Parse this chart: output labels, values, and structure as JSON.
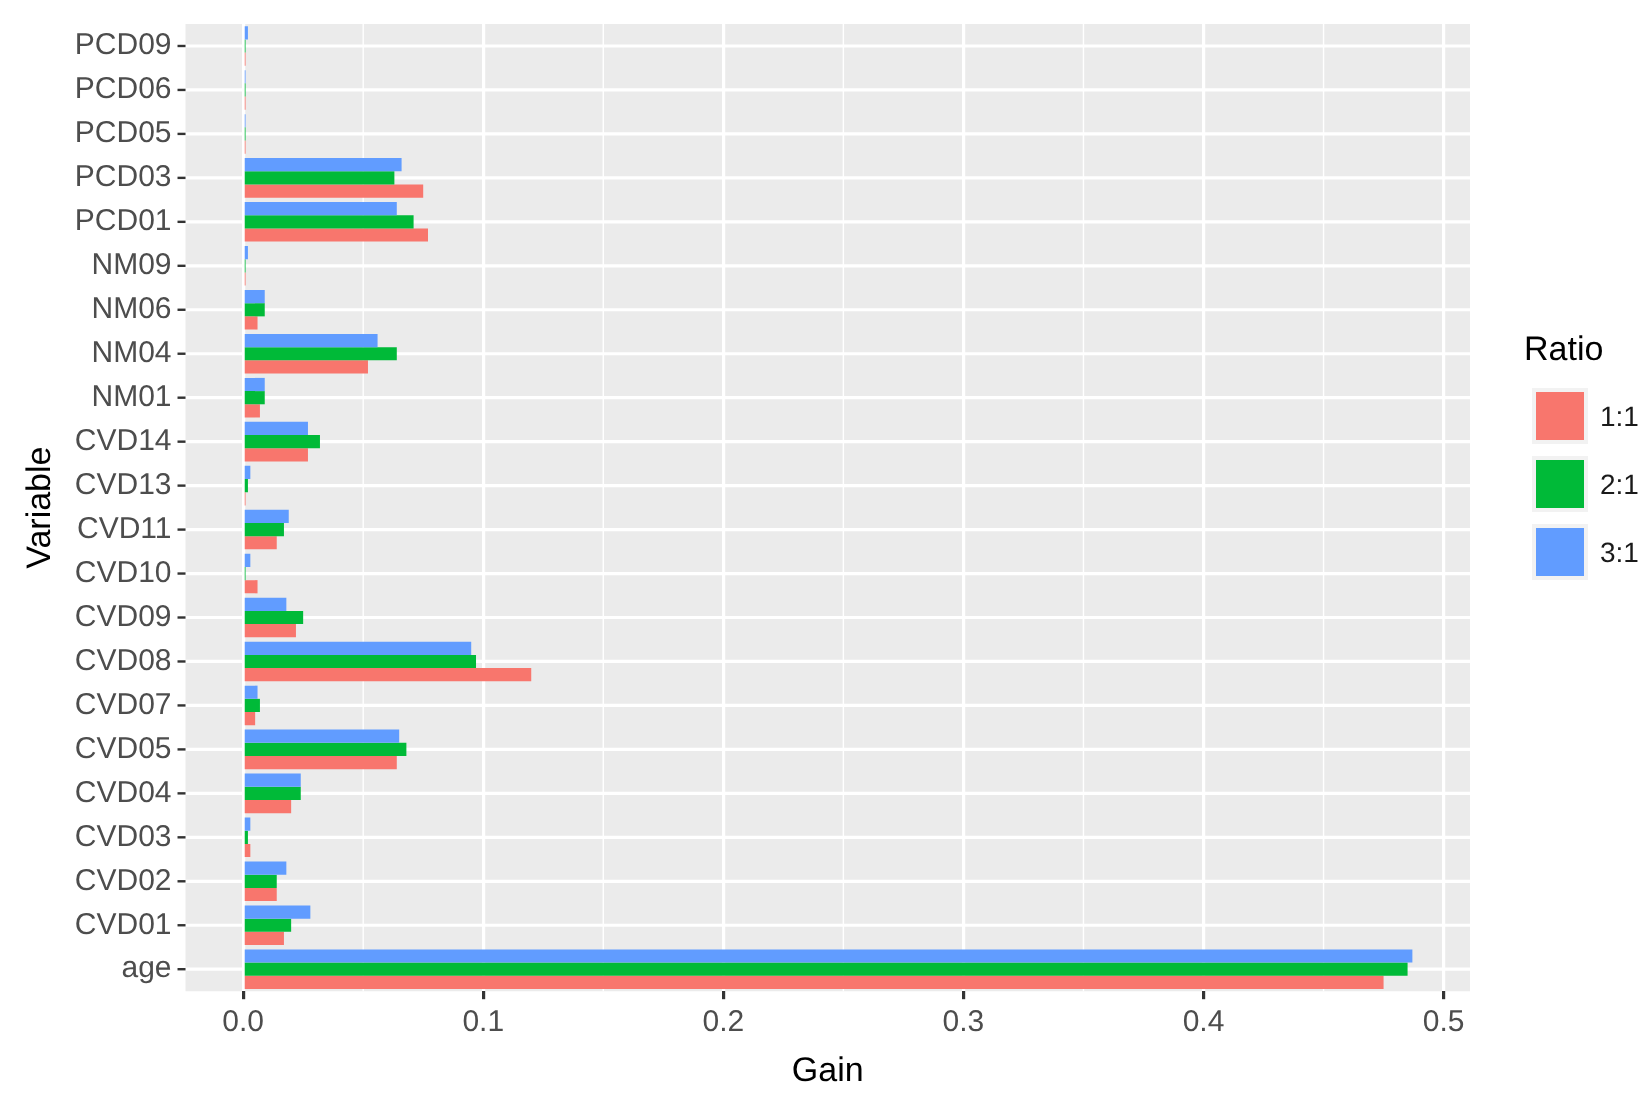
{
  "chart_data": {
    "type": "bar",
    "orientation": "horizontal",
    "xlabel": "Gain",
    "ylabel": "Variable",
    "legend_title": "Ratio",
    "legend": "right",
    "grid": true,
    "categories": [
      "PCD09",
      "PCD06",
      "PCD05",
      "PCD03",
      "PCD01",
      "NM09",
      "NM06",
      "NM04",
      "NM01",
      "CVD14",
      "CVD13",
      "CVD11",
      "CVD10",
      "CVD09",
      "CVD08",
      "CVD07",
      "CVD05",
      "CVD04",
      "CVD03",
      "CVD02",
      "CVD01",
      "age"
    ],
    "xlim": [
      -0.024,
      0.511
    ],
    "xticks": [
      {
        "value": 0,
        "label": "0.0"
      },
      0.1,
      0.2,
      0.3,
      0.4,
      0.5
    ],
    "series": [
      {
        "name": "1:1",
        "color": "#f8766d",
        "values": [
          0.001,
          0.001,
          0.001,
          0.075,
          0.077,
          0.001,
          0.006,
          0.052,
          0.007,
          0.027,
          0.001,
          0.014,
          0.006,
          0.022,
          0.12,
          0.005,
          0.064,
          0.02,
          0.003,
          0.014,
          0.017,
          0.475
        ]
      },
      {
        "name": "2:1",
        "color": "#00ba38",
        "values": [
          0.001,
          0.001,
          0.001,
          0.063,
          0.071,
          0.001,
          0.009,
          0.064,
          0.009,
          0.032,
          0.002,
          0.017,
          0.001,
          0.025,
          0.097,
          0.007,
          0.068,
          0.024,
          0.002,
          0.014,
          0.02,
          0.485
        ]
      },
      {
        "name": "3:1",
        "color": "#619cff",
        "values": [
          0.002,
          0.001,
          0.001,
          0.066,
          0.064,
          0.002,
          0.009,
          0.056,
          0.009,
          0.027,
          0.003,
          0.019,
          0.003,
          0.018,
          0.095,
          0.006,
          0.065,
          0.024,
          0.003,
          0.018,
          0.028,
          0.487
        ]
      }
    ]
  }
}
